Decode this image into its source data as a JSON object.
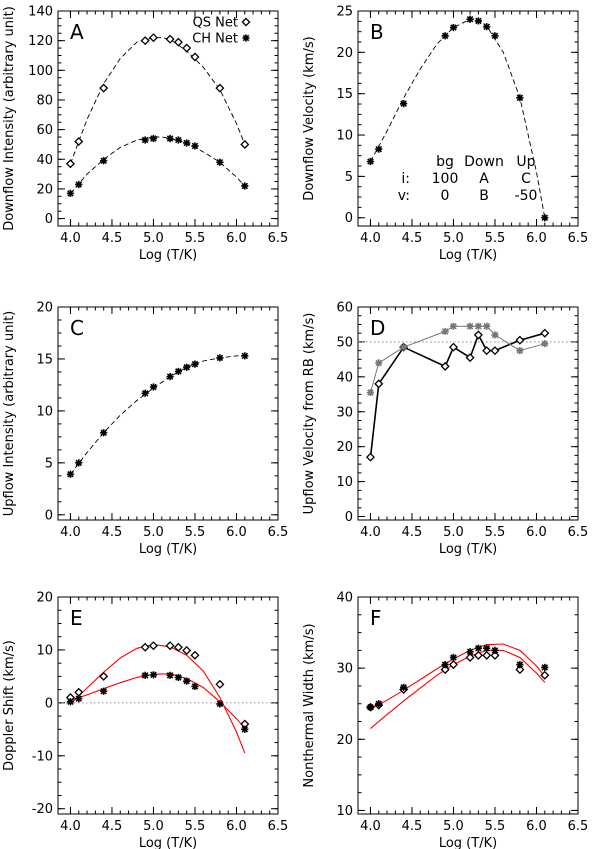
{
  "colors": {
    "axis": "#000000",
    "model": "#ff0000",
    "gray": "#777777"
  },
  "chart_data": [
    {
      "panel": "A",
      "type": "scatter",
      "xlabel": "Log (T/K)",
      "ylabel": "Downflow Intensity (arbitrary unit)",
      "xlim": [
        3.85,
        6.5
      ],
      "ylim": [
        -5,
        140
      ],
      "xticks": [
        4.0,
        4.5,
        5.0,
        5.5,
        6.0,
        6.5
      ],
      "xtick_labels": [
        "4.0",
        "4.5",
        "5.0",
        "5.5",
        "6.0",
        "6.5"
      ],
      "yticks": [
        0,
        20,
        40,
        60,
        80,
        100,
        120,
        140
      ],
      "ytick_labels": [
        "0",
        "20",
        "40",
        "60",
        "80",
        "100",
        "120",
        "140"
      ],
      "legend": {
        "position": "top-right",
        "entries": [
          {
            "label": "QS Net",
            "marker": "diamond"
          },
          {
            "label": "CH Net",
            "marker": "star"
          }
        ]
      },
      "series": [
        {
          "name": "QS Net",
          "marker": "diamond",
          "x": [
            4.0,
            4.1,
            4.4,
            4.9,
            5.0,
            5.2,
            5.3,
            5.4,
            5.5,
            5.8,
            6.1
          ],
          "y": [
            37,
            52,
            88,
            120,
            122,
            121,
            119,
            115,
            109,
            88,
            50
          ]
        },
        {
          "name": "CH Net",
          "marker": "star",
          "x": [
            4.0,
            4.1,
            4.4,
            4.9,
            5.0,
            5.2,
            5.3,
            5.4,
            5.5,
            5.8,
            6.1
          ],
          "y": [
            17,
            23,
            39,
            53,
            54,
            54,
            53,
            51,
            49,
            38,
            22
          ]
        }
      ],
      "fits": [
        {
          "style": "dashed",
          "x": [
            4.0,
            4.2,
            4.4,
            4.6,
            4.8,
            5.0,
            5.1,
            5.2,
            5.4,
            5.6,
            5.8,
            6.0,
            6.1
          ],
          "y": [
            37,
            67,
            91,
            108,
            119,
            122,
            122,
            121,
            113,
            102,
            87,
            64,
            50
          ]
        },
        {
          "style": "dashed",
          "x": [
            4.0,
            4.2,
            4.4,
            4.6,
            4.8,
            5.0,
            5.1,
            5.2,
            5.4,
            5.6,
            5.8,
            6.0,
            6.1
          ],
          "y": [
            17,
            30,
            40,
            48,
            53,
            55,
            55,
            54,
            51,
            45,
            38,
            28,
            22
          ]
        }
      ]
    },
    {
      "panel": "B",
      "type": "scatter",
      "xlabel": "Log (T/K)",
      "ylabel": "Downflow Velocity (km/s)",
      "xlim": [
        3.85,
        6.5
      ],
      "ylim": [
        -1,
        25
      ],
      "xticks": [
        4.0,
        4.5,
        5.0,
        5.5,
        6.0,
        6.5
      ],
      "xtick_labels": [
        "4.0",
        "4.5",
        "5.0",
        "5.5",
        "6.0",
        "6.5"
      ],
      "yticks": [
        0,
        5,
        10,
        15,
        20,
        25
      ],
      "ytick_labels": [
        "0",
        "5",
        "10",
        "15",
        "20",
        "25"
      ],
      "series": [
        {
          "name": "Downflow",
          "marker": "star",
          "x": [
            4.0,
            4.1,
            4.4,
            4.9,
            5.0,
            5.2,
            5.3,
            5.4,
            5.5,
            5.8,
            6.1
          ],
          "y": [
            6.8,
            8.3,
            13.8,
            22.0,
            23.0,
            24.0,
            23.8,
            23.1,
            22.0,
            14.5,
            0
          ]
        }
      ],
      "fits": [
        {
          "style": "dashed",
          "x": [
            4.0,
            4.2,
            4.4,
            4.6,
            4.8,
            5.0,
            5.2,
            5.3,
            5.4,
            5.6,
            5.8,
            6.0,
            6.1
          ],
          "y": [
            6.8,
            10.5,
            14.5,
            18.0,
            21.0,
            23.0,
            24.0,
            24.0,
            23.2,
            20.0,
            14.5,
            5.5,
            0
          ]
        }
      ],
      "annotation_table": {
        "rows": [
          [
            "",
            "bg",
            "Down",
            "Up"
          ],
          [
            "i:",
            "100",
            "A",
            "C"
          ],
          [
            "v:",
            "0",
            "B",
            "-50"
          ]
        ]
      }
    },
    {
      "panel": "C",
      "type": "scatter",
      "xlabel": "Log (T/K)",
      "ylabel": "Upflow Intensity (arbitrary unit)",
      "xlim": [
        3.85,
        6.5
      ],
      "ylim": [
        -0.5,
        20
      ],
      "xticks": [
        4.0,
        4.5,
        5.0,
        5.5,
        6.0,
        6.5
      ],
      "xtick_labels": [
        "4.0",
        "4.5",
        "5.0",
        "5.5",
        "6.0",
        "6.5"
      ],
      "yticks": [
        0,
        5,
        10,
        15,
        20
      ],
      "ytick_labels": [
        "0",
        "5",
        "10",
        "15",
        "20"
      ],
      "series": [
        {
          "name": "Upflow",
          "marker": "star",
          "x": [
            4.0,
            4.1,
            4.4,
            4.9,
            5.0,
            5.2,
            5.3,
            5.4,
            5.5,
            5.8,
            6.1
          ],
          "y": [
            3.9,
            5.0,
            7.9,
            11.7,
            12.3,
            13.3,
            13.8,
            14.2,
            14.5,
            15.1,
            15.3
          ]
        }
      ],
      "fits": [
        {
          "style": "dashed",
          "x": [
            4.0,
            4.2,
            4.4,
            4.6,
            4.8,
            5.0,
            5.2,
            5.4,
            5.6,
            5.8,
            6.0,
            6.1
          ],
          "y": [
            3.9,
            6.0,
            7.9,
            9.6,
            11.0,
            12.2,
            13.3,
            14.2,
            14.8,
            15.1,
            15.3,
            15.3
          ]
        }
      ]
    },
    {
      "panel": "D",
      "type": "line",
      "xlabel": "Log (T/K)",
      "ylabel": "Upflow Velocity from RB (km/s)",
      "xlim": [
        3.85,
        6.5
      ],
      "ylim": [
        -1,
        60
      ],
      "xticks": [
        4.0,
        4.5,
        5.0,
        5.5,
        6.0,
        6.5
      ],
      "xtick_labels": [
        "4.0",
        "4.5",
        "5.0",
        "5.5",
        "6.0",
        "6.5"
      ],
      "yticks": [
        0,
        10,
        20,
        30,
        40,
        50,
        60
      ],
      "ytick_labels": [
        "0",
        "10",
        "20",
        "30",
        "40",
        "50",
        "60"
      ],
      "reference_line": {
        "y": 50,
        "style": "dotted"
      },
      "series": [
        {
          "name": "QS Net",
          "marker": "diamond",
          "color": "#000000",
          "x": [
            4.0,
            4.1,
            4.4,
            4.9,
            5.0,
            5.2,
            5.3,
            5.4,
            5.5,
            5.8,
            6.1
          ],
          "y": [
            17,
            38,
            48.5,
            43,
            48.5,
            45.5,
            52,
            47.5,
            47.5,
            50.5,
            52.5
          ]
        },
        {
          "name": "CH Net",
          "marker": "star",
          "color": "#777777",
          "x": [
            4.0,
            4.1,
            4.4,
            4.9,
            5.0,
            5.2,
            5.3,
            5.4,
            5.5,
            5.8,
            6.1
          ],
          "y": [
            35.5,
            44,
            48.5,
            53,
            54.5,
            54.5,
            54.5,
            54.5,
            52,
            47.5,
            49.5
          ]
        }
      ]
    },
    {
      "panel": "E",
      "type": "scatter",
      "xlabel": "Log (T/K)",
      "ylabel": "Doppler Shift (km/s)",
      "xlim": [
        3.85,
        6.5
      ],
      "ylim": [
        -21,
        20
      ],
      "xticks": [
        4.0,
        4.5,
        5.0,
        5.5,
        6.0,
        6.5
      ],
      "xtick_labels": [
        "4.0",
        "4.5",
        "5.0",
        "5.5",
        "6.0",
        "6.5"
      ],
      "yticks": [
        -20,
        -10,
        0,
        10,
        20
      ],
      "ytick_labels": [
        "-20",
        "-10",
        "0",
        "10",
        "20"
      ],
      "reference_line": {
        "y": 0,
        "style": "dotted"
      },
      "series": [
        {
          "name": "QS Net",
          "marker": "diamond",
          "x": [
            4.0,
            4.1,
            4.4,
            4.9,
            5.0,
            5.2,
            5.3,
            5.4,
            5.5,
            5.8,
            6.1
          ],
          "y": [
            1.0,
            2.0,
            5.0,
            10.5,
            10.8,
            10.8,
            10.5,
            9.9,
            9.0,
            3.5,
            -4.0
          ]
        },
        {
          "name": "CH Net",
          "marker": "star",
          "x": [
            4.0,
            4.1,
            4.4,
            4.9,
            5.0,
            5.2,
            5.3,
            5.4,
            5.5,
            5.8,
            6.1
          ],
          "y": [
            0.2,
            0.8,
            2.2,
            5.2,
            5.3,
            5.2,
            4.8,
            4.1,
            3.1,
            -0.2,
            -5.0
          ]
        }
      ],
      "models": [
        {
          "color": "#ff0000",
          "x": [
            4.0,
            4.2,
            4.4,
            4.6,
            4.8,
            5.0,
            5.2,
            5.4,
            5.6,
            5.8,
            6.0,
            6.1
          ],
          "y": [
            -0.2,
            2.8,
            5.8,
            8.5,
            10.3,
            11.0,
            10.6,
            9.0,
            6.0,
            1.0,
            -5.5,
            -9.5
          ]
        },
        {
          "color": "#ff0000",
          "x": [
            4.0,
            4.2,
            4.4,
            4.6,
            4.8,
            5.0,
            5.2,
            5.4,
            5.6,
            5.8,
            6.0,
            6.1
          ],
          "y": [
            0.5,
            1.5,
            2.7,
            3.8,
            4.8,
            5.4,
            5.5,
            4.6,
            2.9,
            0.2,
            -3.0,
            -4.8
          ]
        }
      ]
    },
    {
      "panel": "F",
      "type": "scatter",
      "xlabel": "Log (T/K)",
      "ylabel": "Nonthermal Width (km/s)",
      "xlim": [
        3.85,
        6.5
      ],
      "ylim": [
        9.5,
        40
      ],
      "xticks": [
        4.0,
        4.5,
        5.0,
        5.5,
        6.0,
        6.5
      ],
      "xtick_labels": [
        "4.0",
        "4.5",
        "5.0",
        "5.5",
        "6.0",
        "6.5"
      ],
      "yticks": [
        10,
        20,
        30,
        40
      ],
      "ytick_labels": [
        "10",
        "20",
        "30",
        "40"
      ],
      "series": [
        {
          "name": "QS Net",
          "marker": "diamond",
          "x": [
            4.0,
            4.1,
            4.4,
            4.9,
            5.0,
            5.2,
            5.3,
            5.4,
            5.5,
            5.8,
            6.1
          ],
          "y": [
            24.5,
            24.8,
            27.0,
            29.8,
            30.5,
            31.5,
            31.8,
            31.8,
            31.8,
            29.8,
            29.0
          ]
        },
        {
          "name": "CH Net",
          "marker": "star",
          "x": [
            4.0,
            4.1,
            4.4,
            4.9,
            5.0,
            5.2,
            5.3,
            5.4,
            5.5,
            5.8,
            6.1
          ],
          "y": [
            24.5,
            25.0,
            27.3,
            30.5,
            31.5,
            32.3,
            32.8,
            32.8,
            32.5,
            30.5,
            30.1
          ]
        }
      ],
      "models": [
        {
          "color": "#ff0000",
          "x": [
            4.0,
            4.2,
            4.4,
            4.6,
            4.8,
            5.0,
            5.2,
            5.4,
            5.6,
            5.8,
            6.0,
            6.1
          ],
          "y": [
            21.5,
            23.5,
            25.4,
            27.2,
            29.0,
            30.5,
            31.7,
            32.5,
            32.5,
            31.5,
            29.3,
            28.0
          ]
        },
        {
          "color": "#ff0000",
          "x": [
            4.0,
            4.2,
            4.4,
            4.6,
            4.8,
            5.0,
            5.2,
            5.4,
            5.6,
            5.8,
            6.0,
            6.1
          ],
          "y": [
            24.3,
            25.5,
            26.9,
            28.4,
            29.9,
            31.3,
            32.5,
            33.3,
            33.4,
            32.5,
            30.3,
            28.8
          ]
        }
      ]
    }
  ]
}
